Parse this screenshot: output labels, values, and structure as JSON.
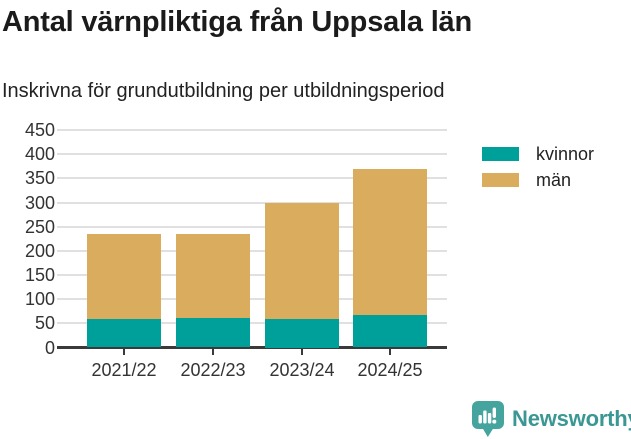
{
  "header": {
    "title": "Antal värnpliktiga från Uppsala län",
    "subtitle": "Inskrivna för grundutbildning per utbildningsperiod"
  },
  "chart_data": {
    "type": "bar",
    "stacked": true,
    "title": "Antal värnpliktiga från Uppsala län",
    "subtitle": "Inskrivna för grundutbildning per utbildningsperiod",
    "categories": [
      "2021/22",
      "2022/23",
      "2023/24",
      "2024/25"
    ],
    "series": [
      {
        "name": "kvinnor",
        "color": "#00a09a",
        "values": [
          58,
          62,
          60,
          67
        ]
      },
      {
        "name": "män",
        "color": "#d9ac5e",
        "values": [
          176,
          173,
          240,
          303
        ]
      }
    ],
    "totals": [
      234,
      235,
      300,
      370
    ],
    "xlabel": "",
    "ylabel": "",
    "ylim": [
      0,
      450
    ],
    "yticks": [
      0,
      50,
      100,
      150,
      200,
      250,
      300,
      350,
      400,
      450
    ],
    "grid": true,
    "gridline_color": "#e0e0e0",
    "axis_color": "#3a3a3a",
    "tick_label_color": "#333333",
    "legend_position": "right"
  },
  "footer": {
    "brand": "Newsworthy",
    "brand_color": "#3a9793",
    "brand_icon": "newsworthy-chart-bubble-icon",
    "brand_icon_color": "#46a49e"
  }
}
